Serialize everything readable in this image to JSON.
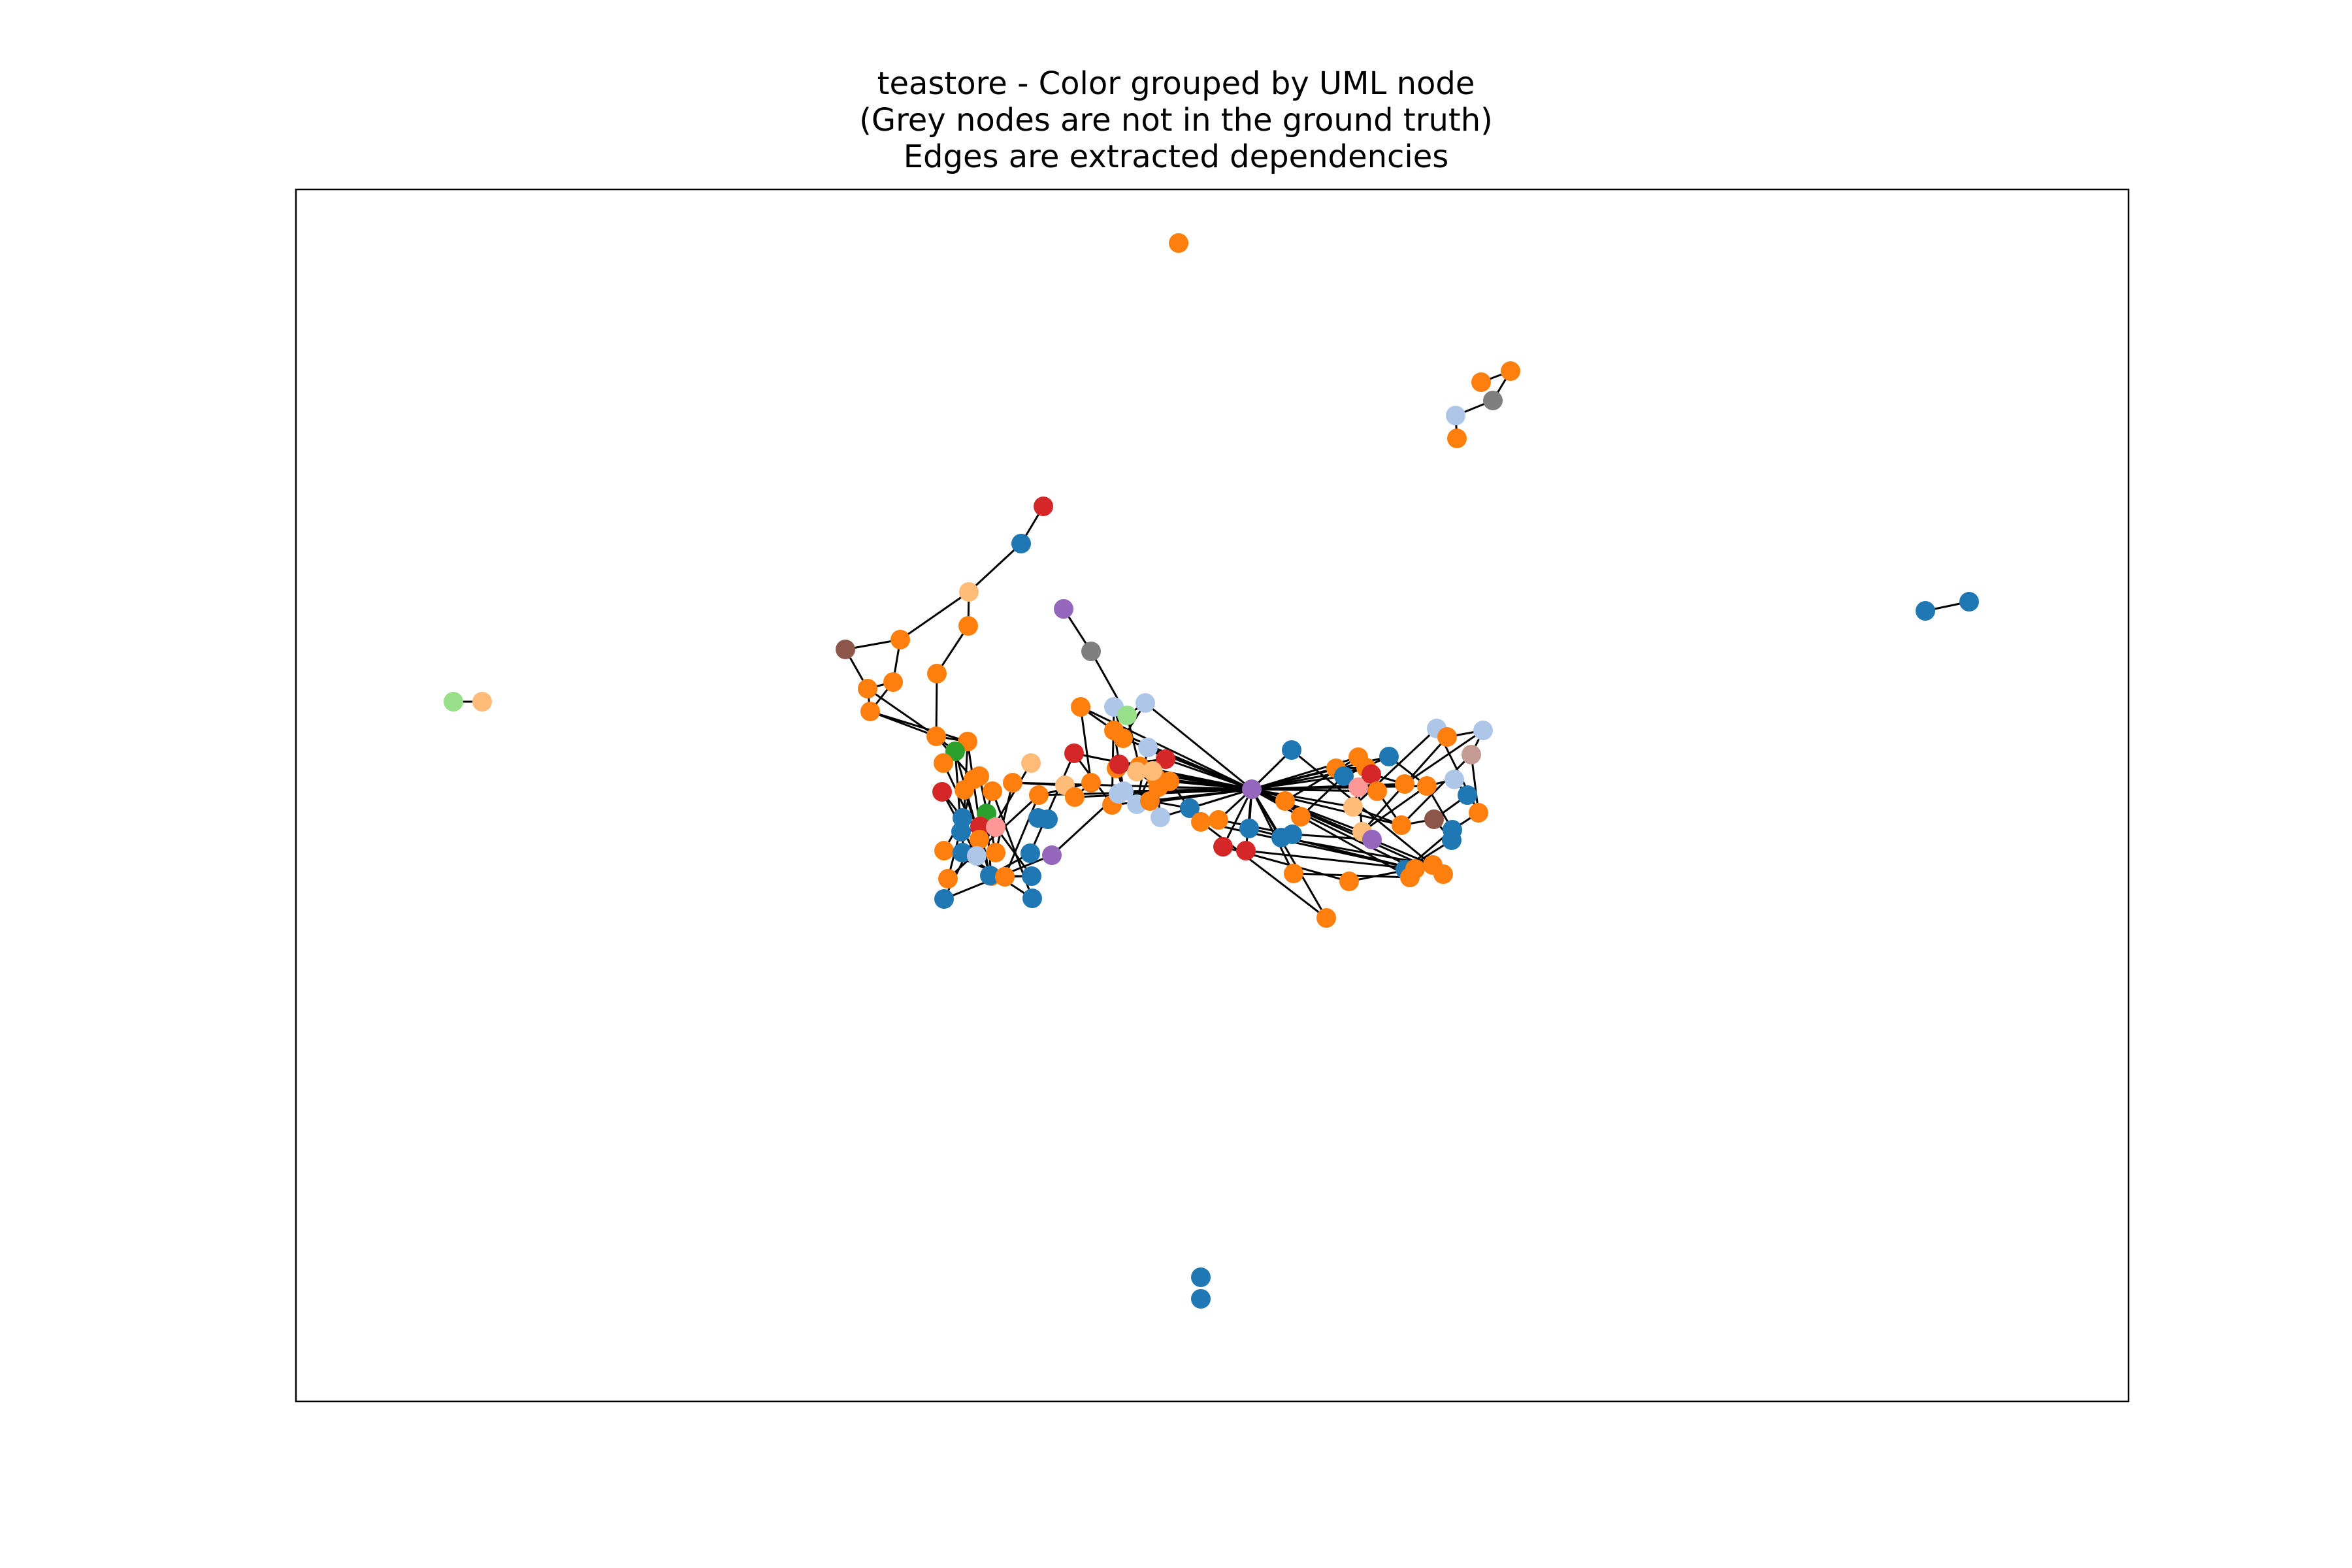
{
  "title": {
    "line1": "teastore - Color grouped by UML node",
    "line2": "(Grey nodes are not in the ground truth)",
    "line3": "Edges are extracted dependencies"
  },
  "colors": {
    "blue": "#1f77b4",
    "orange": "#ff7f0e",
    "light_blue": "#aec7e8",
    "light_orange": "#ffbb78",
    "green": "#2ca02c",
    "light_green": "#98df8a",
    "red": "#d62728",
    "pink": "#ff9896",
    "purple": "#9467bd",
    "brown": "#8c564b",
    "tan": "#c49c94",
    "grey": "#7f7f7f",
    "edge": "#000000",
    "frame": "#000000"
  },
  "graph": {
    "nodes": [
      {
        "id": "n0",
        "c": "orange"
      },
      {
        "id": "n1",
        "c": "orange"
      },
      {
        "id": "n2",
        "c": "orange"
      },
      {
        "id": "n3",
        "c": "light_blue"
      },
      {
        "id": "n4",
        "c": "grey"
      },
      {
        "id": "n5",
        "c": "orange"
      },
      {
        "id": "n6",
        "c": "red"
      },
      {
        "id": "n7",
        "c": "blue"
      },
      {
        "id": "n8",
        "c": "light_orange"
      },
      {
        "id": "n9",
        "c": "orange"
      },
      {
        "id": "n10",
        "c": "orange"
      },
      {
        "id": "n11",
        "c": "brown"
      },
      {
        "id": "n12",
        "c": "orange"
      },
      {
        "id": "n13",
        "c": "orange"
      },
      {
        "id": "n14",
        "c": "orange"
      },
      {
        "id": "n15",
        "c": "orange"
      },
      {
        "id": "n16",
        "c": "orange"
      },
      {
        "id": "n17",
        "c": "purple"
      },
      {
        "id": "n18",
        "c": "grey"
      },
      {
        "id": "n19",
        "c": "light_green"
      },
      {
        "id": "n20",
        "c": "light_orange"
      },
      {
        "id": "n21",
        "c": "blue"
      },
      {
        "id": "n22",
        "c": "blue"
      },
      {
        "id": "n23",
        "c": "blue"
      },
      {
        "id": "n24",
        "c": "blue"
      },
      {
        "id": "n25",
        "c": "orange"
      },
      {
        "id": "n26",
        "c": "green"
      },
      {
        "id": "n27",
        "c": "orange"
      },
      {
        "id": "n28",
        "c": "orange"
      },
      {
        "id": "n29",
        "c": "red"
      },
      {
        "id": "n30",
        "c": "orange"
      },
      {
        "id": "n31",
        "c": "orange"
      },
      {
        "id": "n32",
        "c": "blue"
      },
      {
        "id": "n33",
        "c": "green"
      },
      {
        "id": "n34",
        "c": "red"
      },
      {
        "id": "n35",
        "c": "blue"
      },
      {
        "id": "n36",
        "c": "pink"
      },
      {
        "id": "n37",
        "c": "orange"
      },
      {
        "id": "n38",
        "c": "blue"
      },
      {
        "id": "n39",
        "c": "orange"
      },
      {
        "id": "n40",
        "c": "light_blue"
      },
      {
        "id": "n41",
        "c": "orange"
      },
      {
        "id": "n42",
        "c": "orange"
      },
      {
        "id": "n43",
        "c": "orange"
      },
      {
        "id": "n44",
        "c": "blue"
      },
      {
        "id": "n45",
        "c": "blue"
      },
      {
        "id": "n46",
        "c": "blue"
      },
      {
        "id": "n47",
        "c": "purple"
      },
      {
        "id": "n48",
        "c": "blue"
      },
      {
        "id": "n49",
        "c": "orange"
      },
      {
        "id": "n50",
        "c": "orange"
      },
      {
        "id": "n51",
        "c": "light_orange"
      },
      {
        "id": "n52",
        "c": "orange"
      },
      {
        "id": "n53",
        "c": "orange"
      },
      {
        "id": "n54",
        "c": "blue"
      },
      {
        "id": "n55",
        "c": "light_orange"
      },
      {
        "id": "n56",
        "c": "orange"
      },
      {
        "id": "n57",
        "c": "red"
      },
      {
        "id": "n58",
        "c": "orange"
      },
      {
        "id": "n59",
        "c": "orange"
      },
      {
        "id": "n60",
        "c": "orange"
      },
      {
        "id": "n61",
        "c": "light_blue"
      },
      {
        "id": "n62",
        "c": "orange"
      },
      {
        "id": "n63",
        "c": "orange"
      },
      {
        "id": "n64",
        "c": "light_blue"
      },
      {
        "id": "n65",
        "c": "light_blue"
      },
      {
        "id": "n66",
        "c": "light_green"
      },
      {
        "id": "n67",
        "c": "orange"
      },
      {
        "id": "n68",
        "c": "orange"
      },
      {
        "id": "n69",
        "c": "light_orange"
      },
      {
        "id": "n70",
        "c": "red"
      },
      {
        "id": "n71",
        "c": "red"
      },
      {
        "id": "n72",
        "c": "orange"
      },
      {
        "id": "n73",
        "c": "light_blue"
      },
      {
        "id": "n74",
        "c": "orange"
      },
      {
        "id": "n75",
        "c": "light_blue"
      },
      {
        "id": "n76",
        "c": "light_blue"
      },
      {
        "id": "n77",
        "c": "light_orange"
      },
      {
        "id": "n78",
        "c": "orange"
      },
      {
        "id": "n79",
        "c": "orange"
      },
      {
        "id": "n80",
        "c": "blue"
      },
      {
        "id": "n81",
        "c": "purple"
      },
      {
        "id": "n82",
        "c": "blue"
      },
      {
        "id": "n83",
        "c": "orange"
      },
      {
        "id": "n84",
        "c": "blue"
      },
      {
        "id": "n85",
        "c": "blue"
      },
      {
        "id": "n86",
        "c": "red"
      },
      {
        "id": "n87",
        "c": "red"
      },
      {
        "id": "n88",
        "c": "orange"
      },
      {
        "id": "n89",
        "c": "orange"
      },
      {
        "id": "n90",
        "c": "orange"
      },
      {
        "id": "n91",
        "c": "orange"
      },
      {
        "id": "n92",
        "c": "blue"
      },
      {
        "id": "n93",
        "c": "orange"
      },
      {
        "id": "n94",
        "c": "orange"
      },
      {
        "id": "n95",
        "c": "blue"
      },
      {
        "id": "n96",
        "c": "orange"
      },
      {
        "id": "n97",
        "c": "pink"
      },
      {
        "id": "n98",
        "c": "red"
      },
      {
        "id": "n99",
        "c": "orange"
      },
      {
        "id": "n100",
        "c": "blue"
      },
      {
        "id": "n101",
        "c": "light_orange"
      },
      {
        "id": "n102",
        "c": "light_orange"
      },
      {
        "id": "n103",
        "c": "orange"
      },
      {
        "id": "n104",
        "c": "orange"
      },
      {
        "id": "n105",
        "c": "orange"
      },
      {
        "id": "n106",
        "c": "light_blue"
      },
      {
        "id": "n107",
        "c": "orange"
      },
      {
        "id": "n108",
        "c": "light_blue"
      },
      {
        "id": "n109",
        "c": "tan"
      },
      {
        "id": "n110",
        "c": "light_blue"
      },
      {
        "id": "n111",
        "c": "blue"
      },
      {
        "id": "n112",
        "c": "orange"
      },
      {
        "id": "n113",
        "c": "brown"
      },
      {
        "id": "n114",
        "c": "blue"
      },
      {
        "id": "n115",
        "c": "blue"
      },
      {
        "id": "n116",
        "c": "blue"
      },
      {
        "id": "n117",
        "c": "orange"
      },
      {
        "id": "n118",
        "c": "orange"
      },
      {
        "id": "n119",
        "c": "orange"
      },
      {
        "id": "n120",
        "c": "orange"
      },
      {
        "id": "n121",
        "c": "orange"
      },
      {
        "id": "n122",
        "c": "purple"
      },
      {
        "id": "n123",
        "c": "orange"
      },
      {
        "id": "n124",
        "c": "light_blue"
      },
      {
        "id": "n125",
        "c": "blue"
      },
      {
        "id": "n126",
        "c": "blue"
      }
    ],
    "edges": [
      [
        "n1",
        "n2"
      ],
      [
        "n2",
        "n4"
      ],
      [
        "n4",
        "n3"
      ],
      [
        "n3",
        "n5"
      ],
      [
        "n6",
        "n7"
      ],
      [
        "n7",
        "n8"
      ],
      [
        "n8",
        "n10"
      ],
      [
        "n8",
        "n9"
      ],
      [
        "n9",
        "n11"
      ],
      [
        "n9",
        "n12"
      ],
      [
        "n11",
        "n13"
      ],
      [
        "n13",
        "n14"
      ],
      [
        "n12",
        "n13"
      ],
      [
        "n12",
        "n14"
      ],
      [
        "n10",
        "n15"
      ],
      [
        "n15",
        "n16"
      ],
      [
        "n13",
        "n16"
      ],
      [
        "n14",
        "n16"
      ],
      [
        "n16",
        "n25"
      ],
      [
        "n16",
        "n26"
      ],
      [
        "n16",
        "n28"
      ],
      [
        "n14",
        "n25"
      ],
      [
        "n17",
        "n18"
      ],
      [
        "n18",
        "n66"
      ],
      [
        "n19",
        "n20"
      ],
      [
        "n21",
        "n22"
      ],
      [
        "n25",
        "n34"
      ],
      [
        "n25",
        "n38"
      ],
      [
        "n26",
        "n35"
      ],
      [
        "n26",
        "n45"
      ],
      [
        "n27",
        "n39"
      ],
      [
        "n28",
        "n42"
      ],
      [
        "n29",
        "n40"
      ],
      [
        "n30",
        "n43"
      ],
      [
        "n31",
        "n41"
      ],
      [
        "n33",
        "n44"
      ],
      [
        "n34",
        "n45"
      ],
      [
        "n35",
        "n36"
      ],
      [
        "n36",
        "n46"
      ],
      [
        "n37",
        "n49"
      ],
      [
        "n38",
        "n48"
      ],
      [
        "n39",
        "n50"
      ],
      [
        "n40",
        "n51"
      ],
      [
        "n41",
        "n52"
      ],
      [
        "n42",
        "n53"
      ],
      [
        "n43",
        "n46"
      ],
      [
        "n44",
        "n47"
      ],
      [
        "n46",
        "n49"
      ],
      [
        "n48",
        "n50"
      ],
      [
        "n49",
        "n53"
      ],
      [
        "n32",
        "n37"
      ],
      [
        "n30",
        "n31"
      ],
      [
        "n52",
        "n55"
      ],
      [
        "n53",
        "n58"
      ],
      [
        "n55",
        "n56"
      ],
      [
        "n54",
        "n57"
      ],
      [
        "n56",
        "n58"
      ],
      [
        "n57",
        "n59"
      ],
      [
        "n58",
        "n60"
      ],
      [
        "n59",
        "n61"
      ],
      [
        "n60",
        "n62"
      ],
      [
        "n61",
        "n63"
      ],
      [
        "n62",
        "n65"
      ],
      [
        "n63",
        "n64"
      ],
      [
        "n64",
        "n66"
      ],
      [
        "n65",
        "n67"
      ],
      [
        "n66",
        "n68"
      ],
      [
        "n67",
        "n70"
      ],
      [
        "n68",
        "n69"
      ],
      [
        "n69",
        "n72"
      ],
      [
        "n70",
        "n71"
      ],
      [
        "n71",
        "n73"
      ],
      [
        "n72",
        "n74"
      ],
      [
        "n73",
        "n75"
      ],
      [
        "n74",
        "n76"
      ],
      [
        "n75",
        "n77"
      ],
      [
        "n76",
        "n78"
      ],
      [
        "n77",
        "n79"
      ],
      [
        "n78",
        "n80"
      ],
      [
        "n79",
        "n80"
      ],
      [
        "n64",
        "n81"
      ],
      [
        "n65",
        "n81"
      ],
      [
        "n67",
        "n81"
      ],
      [
        "n68",
        "n81"
      ],
      [
        "n69",
        "n81"
      ],
      [
        "n70",
        "n81"
      ],
      [
        "n71",
        "n81"
      ],
      [
        "n72",
        "n81"
      ],
      [
        "n73",
        "n81"
      ],
      [
        "n74",
        "n81"
      ],
      [
        "n75",
        "n81"
      ],
      [
        "n76",
        "n81"
      ],
      [
        "n77",
        "n81"
      ],
      [
        "n78",
        "n81"
      ],
      [
        "n79",
        "n81"
      ],
      [
        "n80",
        "n81"
      ],
      [
        "n59",
        "n81"
      ],
      [
        "n60",
        "n81"
      ],
      [
        "n62",
        "n81"
      ],
      [
        "n63",
        "n81"
      ],
      [
        "n56",
        "n81"
      ],
      [
        "n57",
        "n81"
      ],
      [
        "n53",
        "n81"
      ],
      [
        "n52",
        "n81"
      ],
      [
        "n81",
        "n82"
      ],
      [
        "n81",
        "n83"
      ],
      [
        "n81",
        "n84"
      ],
      [
        "n81",
        "n85"
      ],
      [
        "n81",
        "n86"
      ],
      [
        "n81",
        "n87"
      ],
      [
        "n81",
        "n88"
      ],
      [
        "n81",
        "n89"
      ],
      [
        "n81",
        "n90"
      ],
      [
        "n81",
        "n91"
      ],
      [
        "n81",
        "n93"
      ],
      [
        "n81",
        "n94"
      ],
      [
        "n81",
        "n95"
      ],
      [
        "n81",
        "n96"
      ],
      [
        "n81",
        "n97"
      ],
      [
        "n81",
        "n99"
      ],
      [
        "n81",
        "n100"
      ],
      [
        "n81",
        "n101"
      ],
      [
        "n81",
        "n102"
      ],
      [
        "n81",
        "n103"
      ],
      [
        "n81",
        "n104"
      ],
      [
        "n81",
        "n105"
      ],
      [
        "n81",
        "n117"
      ],
      [
        "n81",
        "n118"
      ],
      [
        "n81",
        "n119"
      ],
      [
        "n81",
        "n120"
      ],
      [
        "n82",
        "n117"
      ],
      [
        "n84",
        "n119"
      ],
      [
        "n85",
        "n118"
      ],
      [
        "n86",
        "n121"
      ],
      [
        "n87",
        "n117"
      ],
      [
        "n88",
        "n120"
      ],
      [
        "n89",
        "n123"
      ],
      [
        "n90",
        "n94"
      ],
      [
        "n91",
        "n95"
      ],
      [
        "n93",
        "n96"
      ],
      [
        "n94",
        "n99"
      ],
      [
        "n95",
        "n100"
      ],
      [
        "n96",
        "n101"
      ],
      [
        "n97",
        "n102"
      ],
      [
        "n98",
        "n103"
      ],
      [
        "n99",
        "n104"
      ],
      [
        "n100",
        "n105"
      ],
      [
        "n101",
        "n106"
      ],
      [
        "n102",
        "n107"
      ],
      [
        "n103",
        "n108"
      ],
      [
        "n104",
        "n109"
      ],
      [
        "n105",
        "n110"
      ],
      [
        "n106",
        "n107"
      ],
      [
        "n107",
        "n108"
      ],
      [
        "n108",
        "n109"
      ],
      [
        "n109",
        "n112"
      ],
      [
        "n110",
        "n111"
      ],
      [
        "n111",
        "n113"
      ],
      [
        "n112",
        "n114"
      ],
      [
        "n113",
        "n115"
      ],
      [
        "n114",
        "n116"
      ],
      [
        "n115",
        "n116"
      ],
      [
        "n97",
        "n103"
      ],
      [
        "n101",
        "n104"
      ],
      [
        "n102",
        "n105"
      ],
      [
        "n104",
        "n113"
      ],
      [
        "n105",
        "n114"
      ],
      [
        "n106",
        "n112"
      ],
      [
        "n83",
        "n92"
      ],
      [
        "n92",
        "n122"
      ],
      [
        "n124",
        "n47"
      ],
      [
        "n45",
        "n54"
      ],
      [
        "n29",
        "n32"
      ],
      [
        "n33",
        "n43"
      ],
      [
        "n121",
        "n118"
      ],
      [
        "n123",
        "n117"
      ]
    ]
  }
}
